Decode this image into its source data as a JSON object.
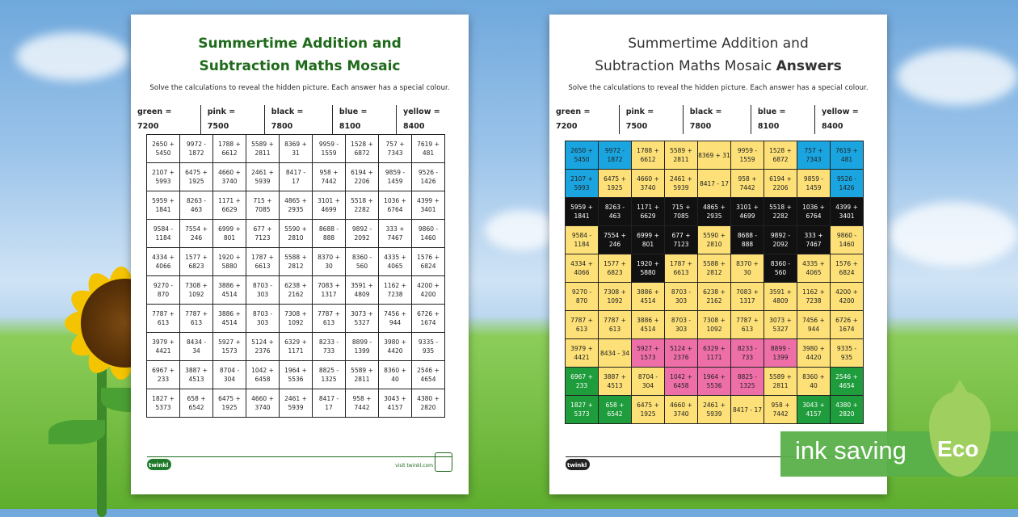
{
  "left": {
    "title_line1": "Summertime Addition and",
    "title_line2": "Subtraction Maths Mosaic",
    "instructions": "Solve the calculations to reveal the hidden picture. Each answer has a special colour.",
    "key": [
      "green = 7200",
      "pink = 7500",
      "black = 7800",
      "blue = 8100",
      "yellow = 8400"
    ],
    "logo": "twinkl",
    "site": "visit twinkl.com"
  },
  "right": {
    "title_line1": "Summertime Addition and",
    "title_line2": "Subtraction Maths Mosaic",
    "title_bold": "Answers",
    "instructions": "Solve the calculations to reveal the hidden picture. Each answer has a special colour.",
    "key": [
      "green = 7200",
      "pink = 7500",
      "black = 7800",
      "blue = 8100",
      "yellow = 8400"
    ],
    "logo": "twinkl"
  },
  "grid": [
    [
      "2650 +\n5450",
      "9972 -\n1872",
      "1788 +\n6612",
      "5589 +\n2811",
      "8369 +\n31",
      "9959 -\n1559",
      "1528 +\n6872",
      "757 +\n7343",
      "7619 +\n481"
    ],
    [
      "2107 +\n5993",
      "6475 +\n1925",
      "4660 +\n3740",
      "2461 +\n5939",
      "8417 -\n17",
      "958 +\n7442",
      "6194 +\n2206",
      "9859 -\n1459",
      "9526 -\n1426"
    ],
    [
      "5959 +\n1841",
      "8263 -\n463",
      "1171 +\n6629",
      "715 +\n7085",
      "4865 +\n2935",
      "3101 +\n4699",
      "5518 +\n2282",
      "1036 +\n6764",
      "4399 +\n3401"
    ],
    [
      "9584 -\n1184",
      "7554 +\n246",
      "6999 +\n801",
      "677 +\n7123",
      "5590 +\n2810",
      "8688 -\n888",
      "9892 -\n2092",
      "333 +\n7467",
      "9860 -\n1460"
    ],
    [
      "4334 +\n4066",
      "1577 +\n6823",
      "1920 +\n5880",
      "1787 +\n6613",
      "5588 +\n2812",
      "8370 +\n30",
      "8360 -\n560",
      "4335 +\n4065",
      "1576 +\n6824"
    ],
    [
      "9270 -\n870",
      "7308 +\n1092",
      "3886 +\n4514",
      "8703 -\n303",
      "6238 +\n2162",
      "7083 +\n1317",
      "3591 +\n4809",
      "1162 +\n7238",
      "4200 +\n4200"
    ],
    [
      "7787 +\n613",
      "7787 +\n613",
      "3886 +\n4514",
      "8703 -\n303",
      "7308 +\n1092",
      "7787 +\n613",
      "3073 +\n5327",
      "7456 +\n944",
      "6726 +\n1674"
    ],
    [
      "3979 +\n4421",
      "8434 -\n34",
      "5927 +\n1573",
      "5124 +\n2376",
      "6329 +\n1171",
      "8233 -\n733",
      "8899 -\n1399",
      "3980 +\n4420",
      "9335 -\n935"
    ],
    [
      "6967 +\n233",
      "3887 +\n4513",
      "8704 -\n304",
      "1042 +\n6458",
      "1964 +\n5536",
      "8825 -\n1325",
      "5589 +\n2811",
      "8360 +\n40",
      "2546 +\n4654"
    ],
    [
      "1827 +\n5373",
      "658 +\n6542",
      "6475 +\n1925",
      "4660 +\n3740",
      "2461 +\n5939",
      "8417 -\n17",
      "958 +\n7442",
      "3043 +\n4157",
      "4380 +\n2820"
    ]
  ],
  "answer_grid": [
    [
      "2650 +\n5450",
      "9972 -\n1872",
      "1788 +\n6612",
      "5589 +\n2811",
      "8369 + 31",
      "9959 -\n1559",
      "1528 +\n6872",
      "757 +\n7343",
      "7619 +\n481"
    ],
    [
      "2107 +\n5993",
      "6475 +\n1925",
      "4660 +\n3740",
      "2461 +\n5939",
      "8417 - 17",
      "958 +\n7442",
      "6194 +\n2206",
      "9859 -\n1459",
      "9526 -\n1426"
    ],
    [
      "5959 +\n1841",
      "8263 -\n463",
      "1171 +\n6629",
      "715 +\n7085",
      "4865 +\n2935",
      "3101 +\n4699",
      "5518 +\n2282",
      "1036 +\n6764",
      "4399 +\n3401"
    ],
    [
      "9584 -\n1184",
      "7554 +\n246",
      "6999 +\n801",
      "677 +\n7123",
      "5590 +\n2810",
      "8688 -\n888",
      "9892 -\n2092",
      "333 +\n7467",
      "9860 -\n1460"
    ],
    [
      "4334 +\n4066",
      "1577 +\n6823",
      "1920 +\n5880",
      "1787 +\n6613",
      "5588 +\n2812",
      "8370 +\n30",
      "8360 -\n560",
      "4335 +\n4065",
      "1576 +\n6824"
    ],
    [
      "9270 -\n870",
      "7308 +\n1092",
      "3886 +\n4514",
      "8703 -\n303",
      "6238 +\n2162",
      "7083 +\n1317",
      "3591 +\n4809",
      "1162 +\n7238",
      "4200 +\n4200"
    ],
    [
      "7787 +\n613",
      "7787 +\n613",
      "3886 +\n4514",
      "8703 -\n303",
      "7308 +\n1092",
      "7787 +\n613",
      "3073 +\n5327",
      "7456 +\n944",
      "6726 +\n1674"
    ],
    [
      "3979 +\n4421",
      "8434 - 34",
      "5927 +\n1573",
      "5124 +\n2376",
      "6329 +\n1171",
      "8233 -\n733",
      "8899 -\n1399",
      "3980 +\n4420",
      "9335 -\n935"
    ],
    [
      "6967 +\n233",
      "3887 +\n4513",
      "8704 -\n304",
      "1042 +\n6458",
      "1964 +\n5536",
      "8825 -\n1325",
      "5589 +\n2811",
      "8360 +\n40",
      "2546 +\n4654"
    ],
    [
      "1827 +\n5373",
      "658 +\n6542",
      "6475 +\n1925",
      "4660 +\n3740",
      "2461 +\n5939",
      "8417 - 17",
      "958 +\n7442",
      "3043 +\n4157",
      "4380 +\n2820"
    ]
  ],
  "answer_colors": [
    [
      "blue",
      "blue",
      "yellow",
      "yellow",
      "yellow",
      "yellow",
      "yellow",
      "blue",
      "blue"
    ],
    [
      "blue",
      "yellow",
      "yellow",
      "yellow",
      "yellow",
      "yellow",
      "yellow",
      "yellow",
      "blue"
    ],
    [
      "black",
      "black",
      "black",
      "black",
      "black",
      "black",
      "black",
      "black",
      "black"
    ],
    [
      "yellow",
      "black",
      "black",
      "black",
      "yellow",
      "black",
      "black",
      "black",
      "yellow"
    ],
    [
      "yellow",
      "yellow",
      "black",
      "yellow",
      "yellow",
      "yellow",
      "black",
      "yellow",
      "yellow"
    ],
    [
      "yellow",
      "yellow",
      "yellow",
      "yellow",
      "yellow",
      "yellow",
      "yellow",
      "yellow",
      "yellow"
    ],
    [
      "yellow",
      "yellow",
      "yellow",
      "yellow",
      "yellow",
      "yellow",
      "yellow",
      "yellow",
      "yellow"
    ],
    [
      "yellow",
      "yellow",
      "pink",
      "pink",
      "pink",
      "pink",
      "pink",
      "yellow",
      "yellow"
    ],
    [
      "green",
      "yellow",
      "yellow",
      "pink",
      "pink",
      "pink",
      "yellow",
      "yellow",
      "green"
    ],
    [
      "green",
      "green",
      "yellow",
      "yellow",
      "yellow",
      "yellow",
      "yellow",
      "green",
      "green"
    ]
  ],
  "banner": {
    "text": "ink saving",
    "drop_text": "Eco"
  }
}
